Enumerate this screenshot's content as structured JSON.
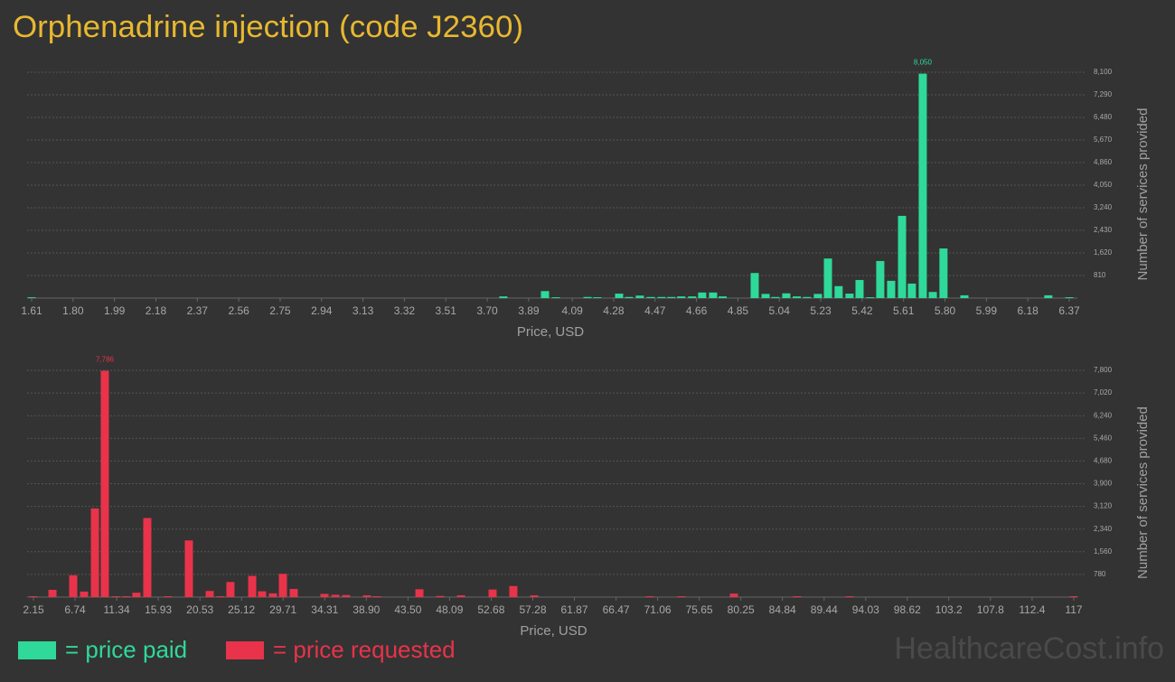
{
  "title": "Orphenadrine injection (code J2360)",
  "watermark": "HealthcareCost.info",
  "chart_data": [
    {
      "type": "bar",
      "x_label": "Price, USD",
      "y_label": "Number of services provided",
      "grid": true,
      "xlim": [
        1.61,
        6.37
      ],
      "xticks": [
        1.61,
        {
          "value": 1.8,
          "label": "1.80"
        },
        1.99,
        2.18,
        2.37,
        2.56,
        2.75,
        2.94,
        3.13,
        3.32,
        3.51,
        {
          "value": 3.7,
          "label": "3.70"
        },
        3.89,
        4.09,
        4.28,
        4.47,
        4.66,
        4.85,
        5.04,
        5.23,
        5.42,
        5.61,
        {
          "value": 5.8,
          "label": "5.80"
        },
        5.99,
        6.18,
        6.37
      ],
      "ylim": [
        0,
        8100
      ],
      "yticks": [
        810,
        {
          "value": 1620,
          "label": "1,620"
        },
        {
          "value": 2430,
          "label": "2,430"
        },
        {
          "value": 3240,
          "label": "3,240"
        },
        {
          "value": 4050,
          "label": "4,050"
        },
        {
          "value": 4860,
          "label": "4,860"
        },
        {
          "value": 5670,
          "label": "5,670"
        },
        {
          "value": 6480,
          "label": "6,480"
        },
        {
          "value": 7290,
          "label": "7,290"
        },
        {
          "value": 8100,
          "label": "8,100"
        }
      ],
      "x": [
        1.61,
        3.774,
        3.965,
        4.015,
        4.16,
        4.205,
        4.305,
        4.35,
        4.4,
        4.45,
        4.5,
        4.545,
        4.59,
        4.64,
        4.686,
        4.736,
        4.78,
        4.927,
        4.977,
        5.022,
        5.072,
        5.12,
        5.167,
        5.217,
        5.263,
        5.312,
        5.362,
        5.408,
        5.457,
        5.503,
        5.553,
        5.603,
        5.648,
        5.698,
        5.744,
        5.793,
        5.889,
        6.274,
        6.37
      ],
      "series": [
        {
          "name": "= price paid",
          "color": "#2ed99a",
          "values": [
            30,
            60,
            250,
            30,
            40,
            30,
            160,
            40,
            90,
            40,
            40,
            40,
            60,
            60,
            200,
            200,
            60,
            900,
            150,
            40,
            170,
            60,
            40,
            150,
            1420,
            430,
            160,
            650,
            30,
            1330,
            620,
            2950,
            520,
            8050,
            220,
            1780,
            100,
            100,
            30
          ],
          "value_labels": [
            null,
            null,
            null,
            null,
            null,
            null,
            null,
            null,
            null,
            null,
            null,
            null,
            null,
            null,
            null,
            null,
            null,
            null,
            null,
            null,
            null,
            null,
            null,
            null,
            null,
            null,
            null,
            null,
            null,
            null,
            null,
            null,
            null,
            "8,050",
            null,
            null,
            null,
            null,
            null
          ]
        }
      ]
    },
    {
      "type": "bar",
      "x_label": "Price, USD",
      "y_label": "Number of services provided",
      "grid": true,
      "xlim": [
        2.15,
        117
      ],
      "xticks": [
        2.15,
        6.74,
        11.34,
        15.93,
        20.53,
        25.12,
        29.71,
        34.31,
        {
          "value": 38.9,
          "label": "38.90"
        },
        {
          "value": 43.5,
          "label": "43.50"
        },
        48.09,
        52.68,
        57.28,
        61.87,
        66.47,
        71.06,
        75.65,
        80.25,
        84.84,
        89.44,
        94.03,
        98.62,
        103.2,
        107.8,
        112.4,
        117
      ],
      "ylim": [
        0,
        7800
      ],
      "yticks": [
        780,
        {
          "value": 1560,
          "label": "1,560"
        },
        {
          "value": 2340,
          "label": "2,340"
        },
        {
          "value": 3120,
          "label": "3,120"
        },
        {
          "value": 3900,
          "label": "3,900"
        },
        {
          "value": 4680,
          "label": "4,680"
        },
        {
          "value": 5460,
          "label": "5,460"
        },
        {
          "value": 6240,
          "label": "6,240"
        },
        {
          "value": 7020,
          "label": "7,020"
        },
        {
          "value": 7800,
          "label": "7,800"
        }
      ],
      "x": [
        2.15,
        4.25,
        6.54,
        7.74,
        8.94,
        10.03,
        11.23,
        12.43,
        13.52,
        14.72,
        17.02,
        19.31,
        21.61,
        22.8,
        23.9,
        26.3,
        27.39,
        28.59,
        29.69,
        30.89,
        34.28,
        35.48,
        36.67,
        38.97,
        40.07,
        44.76,
        47.05,
        49.35,
        52.84,
        55.13,
        57.43,
        70.2,
        73.69,
        79.48,
        86.46,
        92.25,
        117
      ],
      "series": [
        {
          "name": "= price requested",
          "color": "#e8334a",
          "values": [
            30,
            250,
            750,
            190,
            3050,
            7786,
            30,
            30,
            150,
            2720,
            30,
            1950,
            210,
            30,
            520,
            730,
            200,
            130,
            800,
            280,
            110,
            80,
            70,
            60,
            30,
            270,
            40,
            60,
            260,
            380,
            60,
            30,
            30,
            120,
            30,
            30,
            30
          ],
          "value_labels": [
            null,
            null,
            null,
            null,
            null,
            "7,786",
            null,
            null,
            null,
            null,
            null,
            null,
            null,
            null,
            null,
            null,
            null,
            null,
            null,
            null,
            null,
            null,
            null,
            null,
            null,
            null,
            null,
            null,
            null,
            null,
            null,
            null,
            null,
            null,
            null,
            null,
            null
          ]
        }
      ]
    }
  ]
}
